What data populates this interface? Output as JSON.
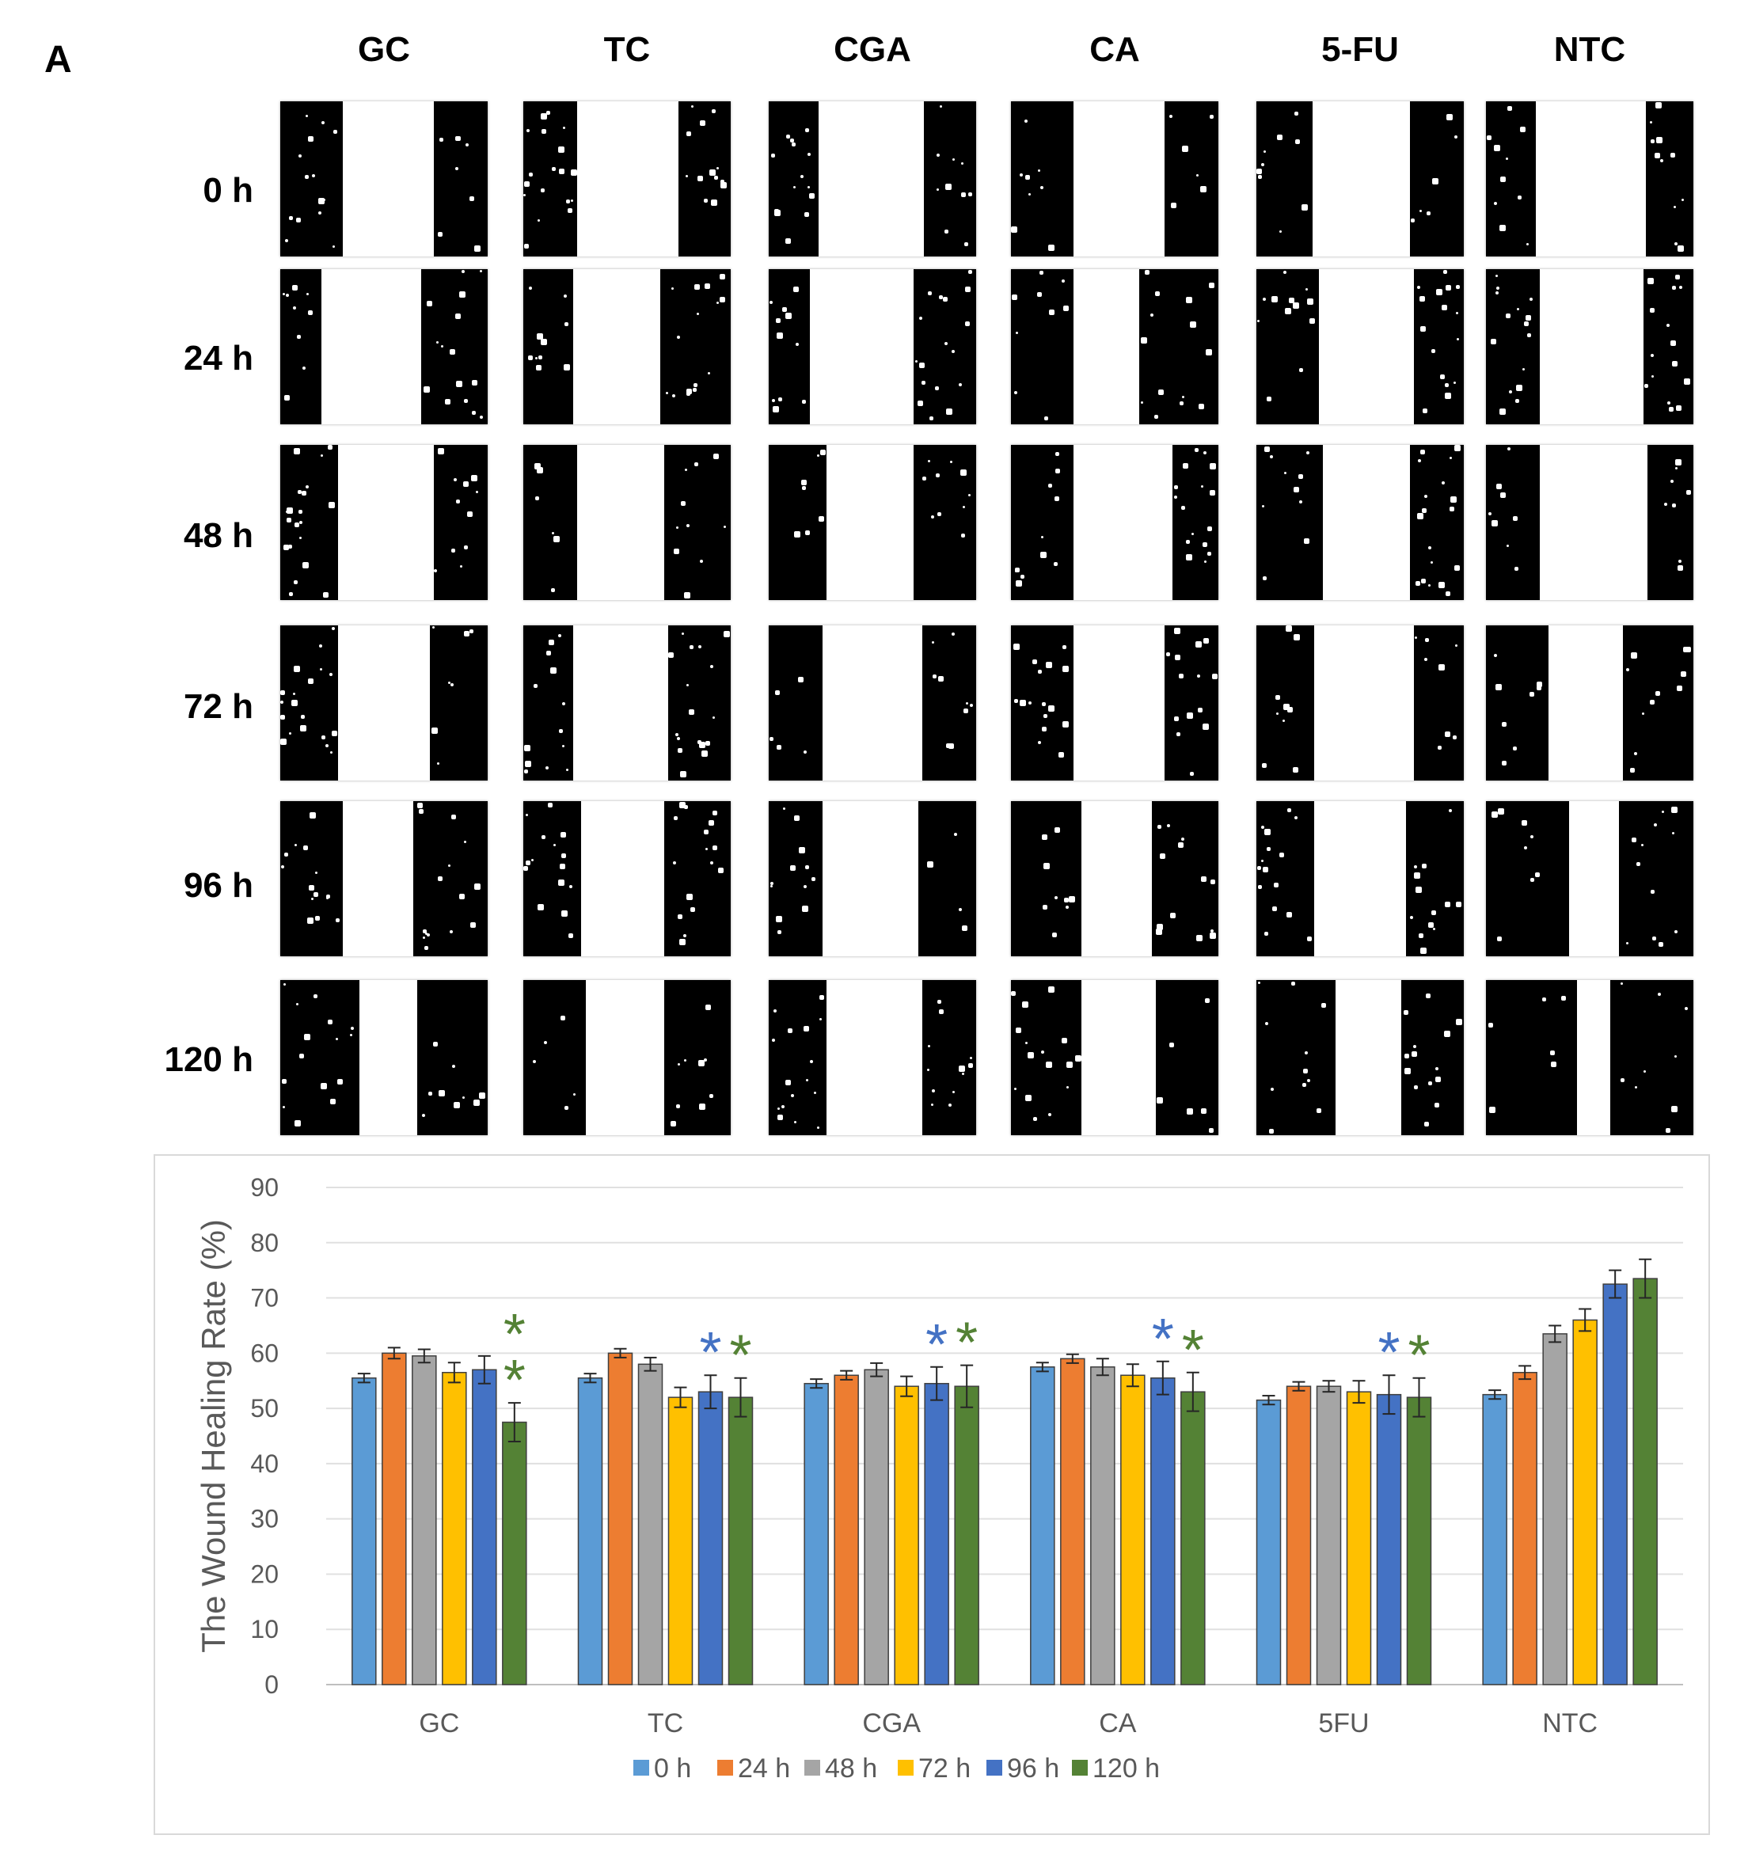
{
  "figure": {
    "panel_label": "A",
    "treatments": [
      "GC",
      "TC",
      "CGA",
      "CA",
      "5-FU",
      "NTC"
    ],
    "timepoints": [
      "0 h",
      "24 h",
      "48 h",
      "72 h",
      "96 h",
      "120 h"
    ]
  },
  "chart_data": {
    "type": "bar",
    "title": "",
    "xlabel": "",
    "ylabel": "The Wound Healing Rate  (%)",
    "ylim": [
      0,
      90
    ],
    "yticks": [
      0,
      10,
      20,
      30,
      40,
      50,
      60,
      70,
      80,
      90
    ],
    "grid": true,
    "legend_position": "bottom",
    "categories": [
      "GC",
      "TC",
      "CGA",
      "CA",
      "5FU",
      "NTC"
    ],
    "series": [
      {
        "name": "0 h",
        "color": "#5b9bd5",
        "values": [
          55.5,
          55.5,
          54.5,
          57.5,
          51.5,
          52.5
        ],
        "errors": [
          0.8,
          0.8,
          0.8,
          0.8,
          0.8,
          0.8
        ]
      },
      {
        "name": "24 h",
        "color": "#ed7d31",
        "values": [
          60.0,
          60.0,
          56.0,
          59.0,
          54.0,
          56.5
        ],
        "errors": [
          1.0,
          0.8,
          0.8,
          0.8,
          0.8,
          1.2
        ]
      },
      {
        "name": "48 h",
        "color": "#a5a5a5",
        "values": [
          59.5,
          58.0,
          57.0,
          57.5,
          54.0,
          63.5
        ],
        "errors": [
          1.2,
          1.2,
          1.2,
          1.5,
          1.0,
          1.5
        ]
      },
      {
        "name": "72 h",
        "color": "#ffc000",
        "values": [
          56.5,
          52.0,
          54.0,
          56.0,
          53.0,
          66.0
        ],
        "errors": [
          1.8,
          1.8,
          1.8,
          2.0,
          2.0,
          2.0
        ]
      },
      {
        "name": "96 h",
        "color": "#4472c4",
        "values": [
          57.0,
          53.0,
          54.5,
          55.5,
          52.5,
          72.5
        ],
        "errors": [
          2.5,
          3.0,
          3.0,
          3.0,
          3.5,
          2.5
        ]
      },
      {
        "name": "120 h",
        "color": "#548235",
        "values": [
          47.5,
          52.0,
          54.0,
          53.0,
          52.0,
          73.5
        ],
        "errors": [
          3.5,
          3.5,
          3.8,
          3.5,
          3.5,
          3.5
        ]
      }
    ],
    "annotations": [
      {
        "category": "GC",
        "series": "120 h",
        "text": "*",
        "color": "#548235"
      },
      {
        "category": "GC",
        "series": "120 h",
        "text": "*",
        "color": "#548235"
      },
      {
        "category": "TC",
        "series": "96 h",
        "text": "*",
        "color": "#4472c4"
      },
      {
        "category": "TC",
        "series": "120 h",
        "text": "*",
        "color": "#548235"
      },
      {
        "category": "CGA",
        "series": "96 h",
        "text": "*",
        "color": "#4472c4"
      },
      {
        "category": "CGA",
        "series": "120 h",
        "text": "*",
        "color": "#548235"
      },
      {
        "category": "CA",
        "series": "96 h",
        "text": "*",
        "color": "#4472c4"
      },
      {
        "category": "CA",
        "series": "120 h",
        "text": "*",
        "color": "#548235"
      },
      {
        "category": "5FU",
        "series": "96 h",
        "text": "*",
        "color": "#4472c4"
      },
      {
        "category": "5FU",
        "series": "120 h",
        "text": "*",
        "color": "#548235"
      }
    ]
  }
}
